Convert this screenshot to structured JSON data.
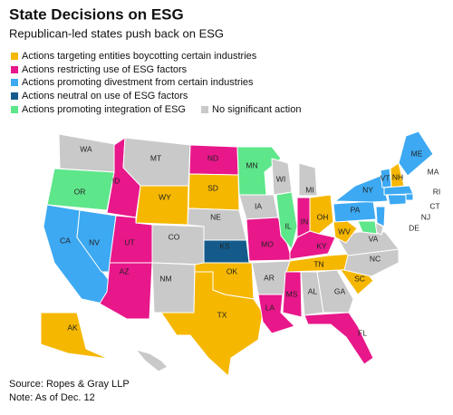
{
  "header": {
    "title": "State Decisions on ESG",
    "subtitle": "Republican-led states push back on ESG"
  },
  "legend": [
    {
      "label": "Actions targeting entities boycotting certain industries",
      "color": "#f5b700"
    },
    {
      "label": "Actions restricting use of ESG factors",
      "color": "#e8178a"
    },
    {
      "label": "Actions promoting divestment from certain industries",
      "color": "#3da9f2"
    },
    {
      "label": "Actions neutral on use of ESG factors",
      "color": "#145b8c"
    },
    {
      "label": "Actions promoting integration of ESG",
      "color": "#5ee68a"
    },
    {
      "label": "No significant action",
      "color": "#c9c9c9"
    }
  ],
  "states": [
    {
      "label": "WA",
      "category": 5
    },
    {
      "label": "OR",
      "category": 4
    },
    {
      "label": "CA",
      "category": 2
    },
    {
      "label": "NV",
      "category": 2
    },
    {
      "label": "ID",
      "category": 1
    },
    {
      "label": "MT",
      "category": 5
    },
    {
      "label": "WY",
      "category": 0
    },
    {
      "label": "UT",
      "category": 1
    },
    {
      "label": "CO",
      "category": 5
    },
    {
      "label": "AZ",
      "category": 1
    },
    {
      "label": "NM",
      "category": 5
    },
    {
      "label": "ND",
      "category": 1
    },
    {
      "label": "SD",
      "category": 0
    },
    {
      "label": "NE",
      "category": 5
    },
    {
      "label": "KS",
      "category": 3
    },
    {
      "label": "OK",
      "category": 0
    },
    {
      "label": "TX",
      "category": 0
    },
    {
      "label": "MN",
      "category": 4
    },
    {
      "label": "IA",
      "category": 5
    },
    {
      "label": "MO",
      "category": 1
    },
    {
      "label": "AR",
      "category": 5
    },
    {
      "label": "LA",
      "category": 1
    },
    {
      "label": "WI",
      "category": 5
    },
    {
      "label": "IL",
      "category": 4
    },
    {
      "label": "MI",
      "category": 5
    },
    {
      "label": "IN",
      "category": 1
    },
    {
      "label": "OH",
      "category": 0
    },
    {
      "label": "KY",
      "category": 1
    },
    {
      "label": "TN",
      "category": 0
    },
    {
      "label": "MS",
      "category": 1
    },
    {
      "label": "AL",
      "category": 5
    },
    {
      "label": "GA",
      "category": 5
    },
    {
      "label": "FL",
      "category": 1
    },
    {
      "label": "SC",
      "category": 0
    },
    {
      "label": "NC",
      "category": 5
    },
    {
      "label": "VA",
      "category": 5
    },
    {
      "label": "WV",
      "category": 0
    },
    {
      "label": "PA",
      "category": 2
    },
    {
      "label": "NY",
      "category": 2
    },
    {
      "label": "VT",
      "category": 2
    },
    {
      "label": "NH",
      "category": 0
    },
    {
      "label": "ME",
      "category": 2
    },
    {
      "label": "MA",
      "category": 2
    },
    {
      "label": "RI",
      "category": 2
    },
    {
      "label": "CT",
      "category": 2
    },
    {
      "label": "NJ",
      "category": 2
    },
    {
      "label": "DE",
      "category": 5
    },
    {
      "label": null,
      "category": 4
    },
    {
      "label": "AK",
      "category": 0
    },
    {
      "label": null,
      "category": 5
    }
  ],
  "footer": {
    "source": "Source: Ropes & Gray LLP",
    "note": "Note: As of Dec. 12"
  }
}
